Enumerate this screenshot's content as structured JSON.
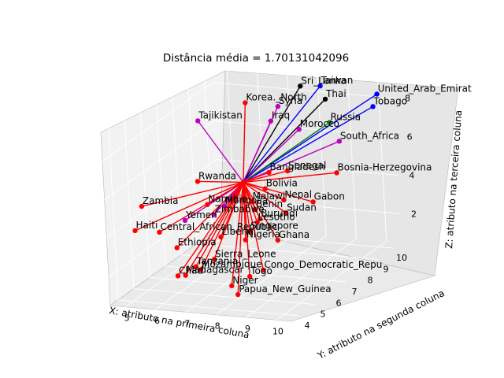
{
  "chart_data": {
    "type": "scatter",
    "title": "Distância média = 1.70131042096",
    "xlabel": "X: atributo na primeira coluna",
    "ylabel": "Y: atributo na segunda coluna",
    "zlabel": "Z: atributo na terceira coluna",
    "x_ticks": [
      "5",
      "6",
      "7",
      "8",
      "9",
      "10"
    ],
    "y_ticks": [
      "4",
      "5",
      "6",
      "7",
      "8",
      "9",
      "10"
    ],
    "z_ticks": [
      "2",
      "4",
      "6",
      "8"
    ],
    "xlim": [
      4.5,
      10.5
    ],
    "ylim": [
      3.5,
      10.5
    ],
    "zlim": [
      0.5,
      9.5
    ],
    "grid": true,
    "colors": {
      "red": "#ff0000",
      "blue": "#0000ff",
      "green": "#008000",
      "magenta": "#bf00bf",
      "black": "#000000",
      "pane": "#f2f2f2"
    },
    "centroid": {
      "x": 7.3,
      "y": 6.9,
      "z": 5.3
    },
    "points": [
      {
        "label": "Korea._North",
        "x": 6.8,
        "y": 8.2,
        "z": 8.6,
        "color": "red"
      },
      {
        "label": "Syria",
        "x": 7.5,
        "y": 8.9,
        "z": 8.1,
        "color": "magenta"
      },
      {
        "label": "Tajikistan",
        "x": 5.9,
        "y": 6.9,
        "z": 8.3,
        "color": "magenta"
      },
      {
        "label": "Iraq",
        "x": 7.4,
        "y": 8.6,
        "z": 7.5,
        "color": "magenta"
      },
      {
        "label": "Sri_Lanka",
        "x": 7.9,
        "y": 9.6,
        "z": 8.8,
        "color": "black"
      },
      {
        "label": "Taiwan",
        "x": 8.4,
        "y": 9.9,
        "z": 8.7,
        "color": "blue"
      },
      {
        "label": "Thai",
        "x": 8.6,
        "y": 9.8,
        "z": 8.1,
        "color": "black"
      },
      {
        "label": "United_Arab_Emirat",
        "x": 10.0,
        "y": 10.4,
        "z": 8.2,
        "color": "blue"
      },
      {
        "label": "Tobago",
        "x": 9.9,
        "y": 10.3,
        "z": 7.6,
        "color": "blue"
      },
      {
        "label": "Russia",
        "x": 8.7,
        "y": 9.8,
        "z": 6.9,
        "color": "green"
      },
      {
        "label": "Morocco",
        "x": 8.0,
        "y": 9.2,
        "z": 6.8,
        "color": "magenta"
      },
      {
        "label": "South_Africa",
        "x": 9.1,
        "y": 9.6,
        "z": 6.1,
        "color": "magenta"
      },
      {
        "label": "Rwanda",
        "x": 6.0,
        "y": 6.5,
        "z": 5.4,
        "color": "red"
      },
      {
        "label": "Bangladesh",
        "x": 7.9,
        "y": 7.4,
        "z": 5.6,
        "color": "red"
      },
      {
        "label": "Senegal",
        "x": 8.3,
        "y": 7.8,
        "z": 5.5,
        "color": "red"
      },
      {
        "label": "Bosnia-Herzegovina",
        "x": 9.5,
        "y": 8.6,
        "z": 5.1,
        "color": "red"
      },
      {
        "label": "Bolivia",
        "x": 7.8,
        "y": 7.3,
        "z": 4.8,
        "color": "red"
      },
      {
        "label": "Namibia",
        "x": 6.5,
        "y": 6.1,
        "z": 4.5,
        "color": "red"
      },
      {
        "label": "Zambia",
        "x": 4.8,
        "y": 5.2,
        "z": 4.7,
        "color": "red"
      },
      {
        "label": "Mongolia",
        "x": 6.9,
        "y": 6.4,
        "z": 4.3,
        "color": "magenta"
      },
      {
        "label": "Malawi",
        "x": 7.6,
        "y": 6.8,
        "z": 4.4,
        "color": "red"
      },
      {
        "label": "Nepal",
        "x": 8.4,
        "y": 7.3,
        "z": 4.3,
        "color": "red"
      },
      {
        "label": "Gabon",
        "x": 9.1,
        "y": 7.8,
        "z": 4.0,
        "color": "red"
      },
      {
        "label": "Zimbabwe",
        "x": 6.7,
        "y": 6.1,
        "z": 4.0,
        "color": "magenta"
      },
      {
        "label": "Benin",
        "x": 7.7,
        "y": 6.8,
        "z": 4.0,
        "color": "red"
      },
      {
        "label": "Burundi",
        "x": 7.9,
        "y": 6.7,
        "z": 3.6,
        "color": "red"
      },
      {
        "label": "Sudan",
        "x": 8.5,
        "y": 7.2,
        "z": 3.7,
        "color": "red"
      },
      {
        "label": "Yemen",
        "x": 6.0,
        "y": 5.6,
        "z": 3.9,
        "color": "magenta"
      },
      {
        "label": "Lesotho",
        "x": 7.8,
        "y": 6.7,
        "z": 3.4,
        "color": "red"
      },
      {
        "label": "Haiti",
        "x": 4.7,
        "y": 4.9,
        "z": 3.6,
        "color": "red"
      },
      {
        "label": "Central_African_Republic",
        "x": 5.4,
        "y": 5.1,
        "z": 3.5,
        "color": "red"
      },
      {
        "label": "Singapore",
        "x": 7.7,
        "y": 6.4,
        "z": 3.1,
        "color": "red"
      },
      {
        "label": "Liberia",
        "x": 7.0,
        "y": 5.9,
        "z": 3.0,
        "color": "red"
      },
      {
        "label": "Ethiopia",
        "x": 5.9,
        "y": 5.2,
        "z": 2.7,
        "color": "red"
      },
      {
        "label": "Nigeria",
        "x": 7.6,
        "y": 6.3,
        "z": 2.7,
        "color": "red"
      },
      {
        "label": "Ghana",
        "x": 8.4,
        "y": 6.8,
        "z": 2.5,
        "color": "red"
      },
      {
        "label": "Sierra_Leone",
        "x": 6.9,
        "y": 5.6,
        "z": 2.0,
        "color": "red"
      },
      {
        "label": "Tanzania",
        "x": 6.5,
        "y": 5.2,
        "z": 1.8,
        "color": "red"
      },
      {
        "label": "Mozambique",
        "x": 6.6,
        "y": 5.3,
        "z": 1.6,
        "color": "red"
      },
      {
        "label": "Madagascar",
        "x": 6.3,
        "y": 4.9,
        "z": 1.5,
        "color": "red"
      },
      {
        "label": "Chad",
        "x": 6.1,
        "y": 4.8,
        "z": 1.5,
        "color": "red"
      },
      {
        "label": "Congo_Democratic_Repu",
        "x": 8.3,
        "y": 6.0,
        "z": 1.4,
        "color": "red"
      },
      {
        "label": "Togo",
        "x": 8.0,
        "y": 5.7,
        "z": 1.2,
        "color": "red"
      },
      {
        "label": "Niger",
        "x": 7.6,
        "y": 5.3,
        "z": 0.9,
        "color": "red"
      },
      {
        "label": "Papua_New_Guinea",
        "x": 7.9,
        "y": 5.1,
        "z": 0.6,
        "color": "red"
      }
    ]
  }
}
